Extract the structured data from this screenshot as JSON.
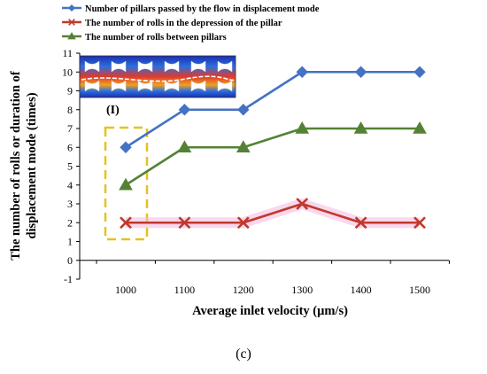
{
  "chart_data": {
    "type": "line",
    "x": [
      1000,
      1100,
      1200,
      1300,
      1400,
      1500
    ],
    "xticks": [
      "1000",
      "1100",
      "1200",
      "1300",
      "1400",
      "1500"
    ],
    "ylim": [
      -1,
      11
    ],
    "yticks": [
      "-1",
      "0",
      "1",
      "2",
      "3",
      "4",
      "5",
      "6",
      "7",
      "8",
      "9",
      "10",
      "11"
    ],
    "xlabel": "Average inlet velocity (μm/s)",
    "ylabel_line1": "The number of rolls or duration of",
    "ylabel_line2": "displacement mode (times)",
    "grid": false,
    "legend_position": "top-left",
    "series": [
      {
        "name": "Number of pillars passed by the flow in displacement mode",
        "values": [
          6,
          8,
          8,
          10,
          10,
          10
        ],
        "color": "#4472C4",
        "marker": "diamond"
      },
      {
        "name": "The number of rolls in the depression of the pillar",
        "values": [
          2,
          2,
          2,
          3,
          2,
          2
        ],
        "color": "#C0392B",
        "marker": "x"
      },
      {
        "name": "The number of rolls between pillars",
        "values": [
          4,
          6,
          6,
          7,
          7,
          7
        ],
        "color": "#548235",
        "marker": "triangle"
      }
    ],
    "inset_label": "(I)",
    "caption": "(c)",
    "highlight_color": "#E6C21E"
  }
}
